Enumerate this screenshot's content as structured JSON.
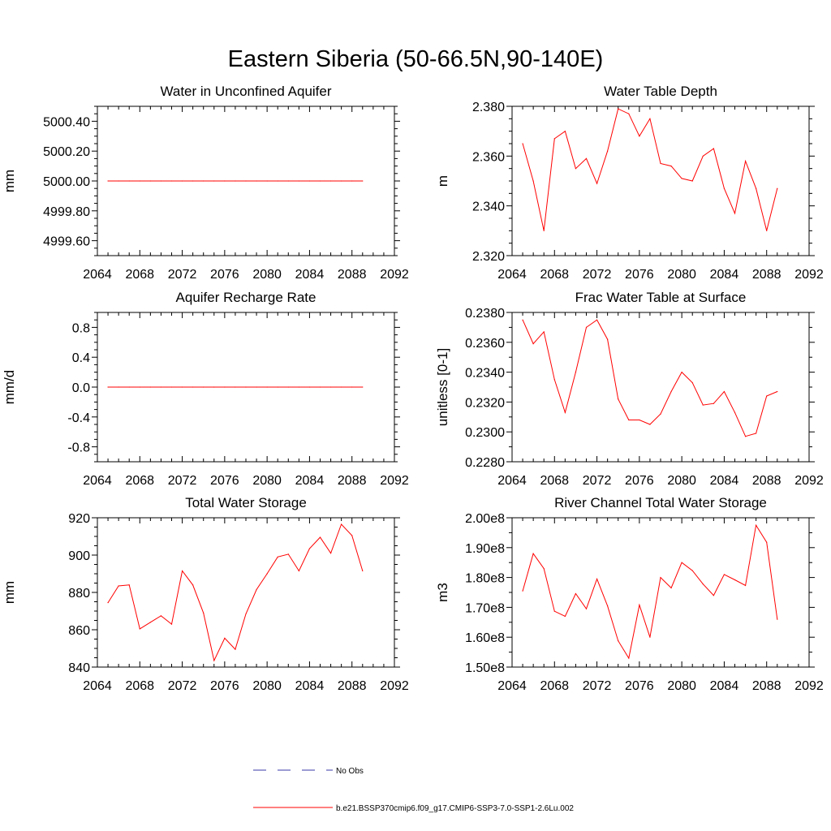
{
  "figure": {
    "title": "Eastern Siberia (50-66.5N,90-140E)",
    "line_color": "#ff0000",
    "obs_color": "#3a3aa8"
  },
  "legend": {
    "obs_label": "No Obs",
    "model_label": "b.e21.BSSP370cmip6.f09_g17.CMIP6-SSP3-7.0-SSP1-2.6Lu.002"
  },
  "chart_data": [
    {
      "type": "line",
      "title": "Water in Unconfined Aquifer",
      "ylabel": "mm",
      "xlim": [
        2064,
        2092
      ],
      "ylim": [
        4999.5,
        5000.5
      ],
      "xticks": [
        "2064",
        "2068",
        "2072",
        "2076",
        "2080",
        "2084",
        "2088",
        "2092"
      ],
      "yticks": [
        "4999.60",
        "4999.80",
        "5000.00",
        "5000.20",
        "5000.40"
      ],
      "x": [
        2065,
        2066,
        2067,
        2068,
        2069,
        2070,
        2071,
        2072,
        2073,
        2074,
        2075,
        2076,
        2077,
        2078,
        2079,
        2080,
        2081,
        2082,
        2083,
        2084,
        2085,
        2086,
        2087,
        2088,
        2089
      ],
      "values": [
        5000.0,
        5000.0,
        5000.0,
        5000.0,
        5000.0,
        5000.0,
        5000.0,
        5000.0,
        5000.0,
        5000.0,
        5000.0,
        5000.0,
        5000.0,
        5000.0,
        5000.0,
        5000.0,
        5000.0,
        5000.0,
        5000.0,
        5000.0,
        5000.0,
        5000.0,
        5000.0,
        5000.0,
        5000.0
      ]
    },
    {
      "type": "line",
      "title": "Water Table Depth",
      "ylabel": "m",
      "xlim": [
        2064,
        2092
      ],
      "ylim": [
        2.32,
        2.38
      ],
      "xticks": [
        "2064",
        "2068",
        "2072",
        "2076",
        "2080",
        "2084",
        "2088",
        "2092"
      ],
      "yticks": [
        "2.320",
        "2.340",
        "2.360",
        "2.380"
      ],
      "x": [
        2065,
        2066,
        2067,
        2068,
        2069,
        2070,
        2071,
        2072,
        2073,
        2074,
        2075,
        2076,
        2077,
        2078,
        2079,
        2080,
        2081,
        2082,
        2083,
        2084,
        2085,
        2086,
        2087,
        2088,
        2089
      ],
      "values": [
        2.365,
        2.35,
        2.33,
        2.367,
        2.37,
        2.355,
        2.359,
        2.349,
        2.362,
        2.379,
        2.377,
        2.368,
        2.375,
        2.357,
        2.356,
        2.351,
        2.35,
        2.36,
        2.363,
        2.347,
        2.337,
        2.358,
        2.347,
        2.33,
        2.347
      ]
    },
    {
      "type": "line",
      "title": "Aquifer Recharge Rate",
      "ylabel": "mm/d",
      "xlim": [
        2064,
        2092
      ],
      "ylim": [
        -1.0,
        1.0
      ],
      "xticks": [
        "2064",
        "2068",
        "2072",
        "2076",
        "2080",
        "2084",
        "2088",
        "2092"
      ],
      "yticks": [
        "-0.8",
        "-0.4",
        "0.0",
        "0.4",
        "0.8"
      ],
      "x": [
        2065,
        2066,
        2067,
        2068,
        2069,
        2070,
        2071,
        2072,
        2073,
        2074,
        2075,
        2076,
        2077,
        2078,
        2079,
        2080,
        2081,
        2082,
        2083,
        2084,
        2085,
        2086,
        2087,
        2088,
        2089
      ],
      "values": [
        0,
        0,
        0,
        0,
        0,
        0,
        0,
        0,
        0,
        0,
        0,
        0,
        0,
        0,
        0,
        0,
        0,
        0,
        0,
        0,
        0,
        0,
        0,
        0,
        0
      ]
    },
    {
      "type": "line",
      "title": "Frac Water Table at Surface",
      "ylabel": "unitless [0-1]",
      "xlim": [
        2064,
        2092
      ],
      "ylim": [
        0.228,
        0.238
      ],
      "xticks": [
        "2064",
        "2068",
        "2072",
        "2076",
        "2080",
        "2084",
        "2088",
        "2092"
      ],
      "yticks": [
        "0.2280",
        "0.2300",
        "0.2320",
        "0.2340",
        "0.2360",
        "0.2380"
      ],
      "x": [
        2065,
        2066,
        2067,
        2068,
        2069,
        2070,
        2071,
        2072,
        2073,
        2074,
        2075,
        2076,
        2077,
        2078,
        2079,
        2080,
        2081,
        2082,
        2083,
        2084,
        2085,
        2086,
        2087,
        2088,
        2089
      ],
      "values": [
        0.2375,
        0.2359,
        0.2367,
        0.2335,
        0.2313,
        0.234,
        0.237,
        0.2375,
        0.2362,
        0.2322,
        0.2308,
        0.2308,
        0.2305,
        0.2312,
        0.2327,
        0.234,
        0.2333,
        0.2318,
        0.2319,
        0.2327,
        0.2313,
        0.2297,
        0.2299,
        0.2324,
        0.2327
      ]
    },
    {
      "type": "line",
      "title": "Total Water Storage",
      "ylabel": "mm",
      "xlim": [
        2064,
        2092
      ],
      "ylim": [
        840,
        920
      ],
      "xticks": [
        "2064",
        "2068",
        "2072",
        "2076",
        "2080",
        "2084",
        "2088",
        "2092"
      ],
      "yticks": [
        "840",
        "860",
        "880",
        "900",
        "920"
      ],
      "x": [
        2065,
        2066,
        2067,
        2068,
        2069,
        2070,
        2071,
        2072,
        2073,
        2074,
        2075,
        2076,
        2077,
        2078,
        2079,
        2080,
        2081,
        2082,
        2083,
        2084,
        2085,
        2086,
        2087,
        2088,
        2089
      ],
      "values": [
        874.5,
        883.5,
        884,
        860.5,
        864,
        867.5,
        863,
        891.5,
        884,
        869,
        843.5,
        855.5,
        849.5,
        868.5,
        881.5,
        890,
        899,
        900.5,
        891.5,
        903.5,
        909.5,
        901,
        916.5,
        910.5,
        891.5
      ]
    },
    {
      "type": "line",
      "title": "River Channel Total Water Storage",
      "ylabel": "m3",
      "xlim": [
        2064,
        2092
      ],
      "ylim": [
        150000000,
        200000000
      ],
      "xticks": [
        "2064",
        "2068",
        "2072",
        "2076",
        "2080",
        "2084",
        "2088",
        "2092"
      ],
      "yticks": [
        "1.50e8",
        "1.60e8",
        "1.70e8",
        "1.80e8",
        "1.90e8",
        "2.00e8"
      ],
      "x": [
        2065,
        2066,
        2067,
        2068,
        2069,
        2070,
        2071,
        2072,
        2073,
        2074,
        2075,
        2076,
        2077,
        2078,
        2079,
        2080,
        2081,
        2082,
        2083,
        2084,
        2085,
        2086,
        2087,
        2088,
        2089
      ],
      "values": [
        175500000,
        188000000,
        183000000,
        168700000,
        167000000,
        174600000,
        169500000,
        179500000,
        170500000,
        158800000,
        153000000,
        170800000,
        160000000,
        180000000,
        176500000,
        185000000,
        182300000,
        177800000,
        174000000,
        181000000,
        179200000,
        177300000,
        197500000,
        191800000,
        166000000
      ]
    }
  ]
}
